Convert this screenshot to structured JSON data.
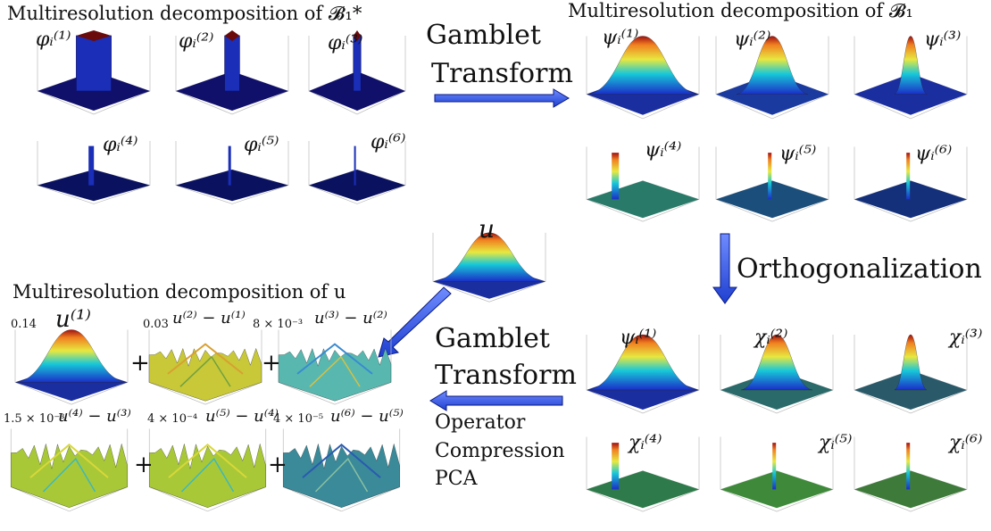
{
  "titles": {
    "phi": "Multiresolution decomposition of 𝓑₁*",
    "psi": "Multiresolution decomposition of 𝓑₁",
    "u": "Multiresolution decomposition of u"
  },
  "arrows": {
    "gamblet_top_1": "Gamblet",
    "gamblet_top_2": "Transform",
    "orth": "Orthogonalization",
    "gamblet_bot_1": "Gamblet",
    "gamblet_bot_2": "Transform",
    "op1": "Operator",
    "op2": "Compression",
    "op3": "PCA"
  },
  "labels": {
    "phi": [
      "φᵢ⁽¹⁾",
      "φᵢ⁽²⁾",
      "φᵢ⁽³⁾",
      "φᵢ⁽⁴⁾",
      "φᵢ⁽⁵⁾",
      "φᵢ⁽⁶⁾"
    ],
    "psi": [
      "ψᵢ⁽¹⁾",
      "ψᵢ⁽²⁾",
      "ψᵢ⁽³⁾",
      "ψᵢ⁽⁴⁾",
      "ψᵢ⁽⁵⁾",
      "ψᵢ⁽⁶⁾"
    ],
    "chi": [
      "ψᵢ⁽¹⁾",
      "χᵢ⁽²⁾",
      "χᵢ⁽³⁾",
      "χᵢ⁽⁴⁾",
      "χᵢ⁽⁵⁾",
      "χᵢ⁽⁶⁾"
    ],
    "u_main": "u",
    "u": [
      "u⁽¹⁾",
      "u⁽²⁾ − u⁽¹⁾",
      "u⁽³⁾ − u⁽²⁾",
      "u⁽⁴⁾ − u⁽³⁾",
      "u⁽⁵⁾ − u⁽⁴⁾",
      "u⁽⁶⁾ − u⁽⁵⁾"
    ],
    "u_scale": [
      "0.14",
      "0.03",
      "8 × 10⁻³",
      "1.5 × 10⁻³",
      "4 × 10⁻⁴",
      "4 × 10⁻⁵"
    ],
    "plus": "+"
  }
}
